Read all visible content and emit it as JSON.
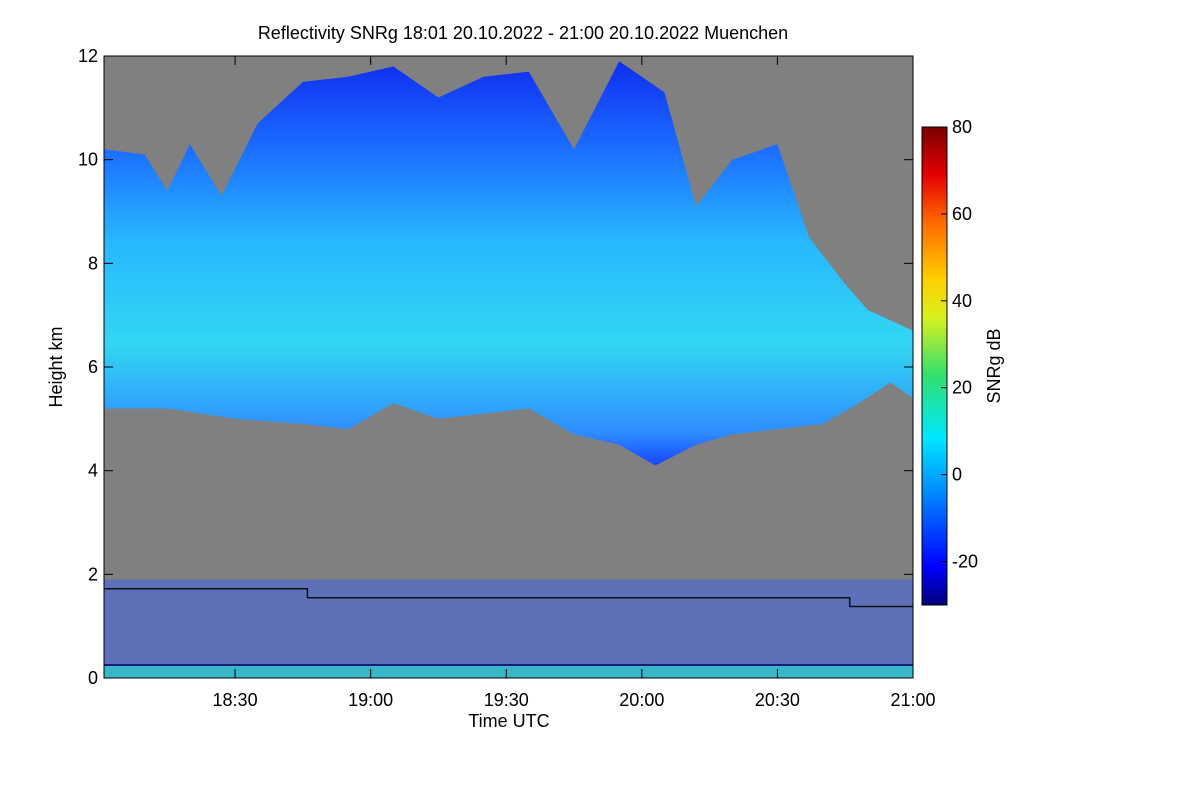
{
  "chart_data": {
    "type": "heatmap",
    "title": "Reflectivity SNRg   18:01 20.10.2022 - 21:00 20.10.2022 Muenchen",
    "xlabel": "Time UTC",
    "ylabel": "Height km",
    "xlim": [
      "18:01",
      "21:00"
    ],
    "ylim": [
      0,
      12
    ],
    "xticks": [
      "18:30",
      "19:00",
      "19:30",
      "20:00",
      "20:30",
      "21:00"
    ],
    "yticks": [
      "0",
      "2",
      "4",
      "6",
      "8",
      "10",
      "12"
    ],
    "colorbar": {
      "label": "SNRg dB",
      "range": [
        -30,
        80
      ],
      "ticks": [
        "-20",
        "0",
        "20",
        "40",
        "60",
        "80"
      ]
    },
    "colors": {
      "background": "#808080",
      "no_signal": "#808080"
    },
    "cloud_top_km": [
      [
        "18:01",
        10.2
      ],
      [
        "18:10",
        10.1
      ],
      [
        "18:15",
        9.4
      ],
      [
        "18:20",
        10.3
      ],
      [
        "18:27",
        9.3
      ],
      [
        "18:35",
        10.7
      ],
      [
        "18:45",
        11.5
      ],
      [
        "18:55",
        11.6
      ],
      [
        "19:05",
        11.8
      ],
      [
        "19:15",
        11.2
      ],
      [
        "19:25",
        11.6
      ],
      [
        "19:35",
        11.7
      ],
      [
        "19:45",
        10.2
      ],
      [
        "19:55",
        11.9
      ],
      [
        "20:05",
        11.3
      ],
      [
        "20:12",
        9.1
      ],
      [
        "20:20",
        10.0
      ],
      [
        "20:30",
        10.3
      ],
      [
        "20:37",
        8.5
      ],
      [
        "20:45",
        7.6
      ],
      [
        "20:50",
        7.1
      ],
      [
        "20:55",
        6.9
      ],
      [
        "21:00",
        6.7
      ]
    ],
    "cloud_base_km": [
      [
        "18:01",
        5.2
      ],
      [
        "18:15",
        5.2
      ],
      [
        "18:30",
        5.0
      ],
      [
        "18:45",
        4.9
      ],
      [
        "18:55",
        4.8
      ],
      [
        "19:05",
        5.3
      ],
      [
        "19:15",
        5.0
      ],
      [
        "19:25",
        5.1
      ],
      [
        "19:35",
        5.2
      ],
      [
        "19:45",
        4.7
      ],
      [
        "19:55",
        4.5
      ],
      [
        "20:03",
        4.1
      ],
      [
        "20:12",
        4.5
      ],
      [
        "20:20",
        4.7
      ],
      [
        "20:30",
        4.8
      ],
      [
        "20:40",
        4.9
      ],
      [
        "20:48",
        5.3
      ],
      [
        "20:55",
        5.7
      ],
      [
        "21:00",
        5.4
      ]
    ],
    "boundary_layer_km": [
      [
        "18:01",
        1.72
      ],
      [
        "18:46",
        1.72
      ],
      [
        "18:46",
        1.55
      ],
      [
        "20:46",
        1.55
      ],
      [
        "20:46",
        1.38
      ],
      [
        "21:00",
        1.38
      ]
    ]
  }
}
